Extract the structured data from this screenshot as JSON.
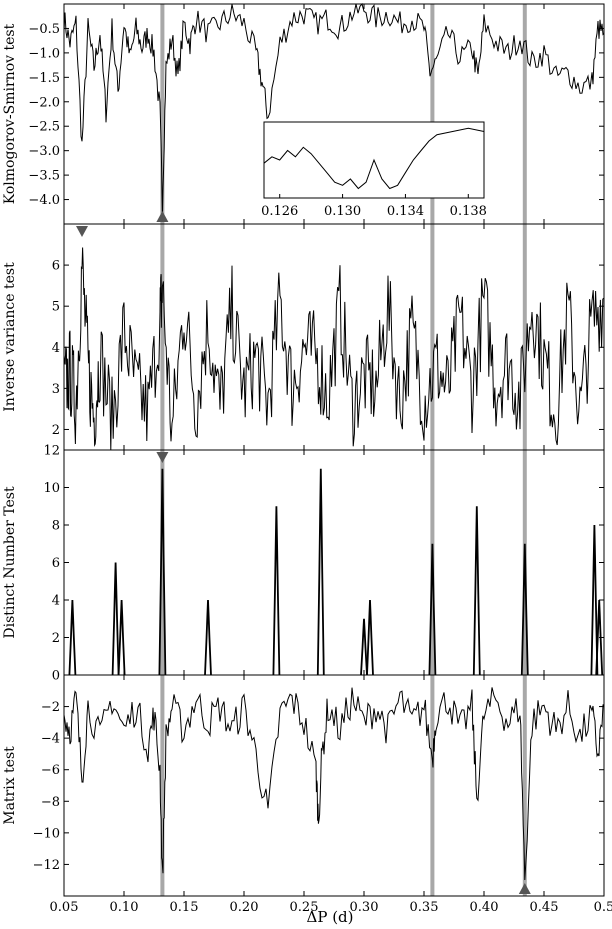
{
  "chart_data": {
    "type": "line",
    "x_axis": {
      "label": "ΔP (d)",
      "range": [
        0.05,
        0.5
      ],
      "ticks": [
        0.05,
        0.1,
        0.15,
        0.2,
        0.25,
        0.3,
        0.35,
        0.4,
        0.45,
        0.5
      ],
      "tick_labels": [
        "0.05",
        "0.10",
        "0.15",
        "0.20",
        "0.25",
        "0.30",
        "0.35",
        "0.40",
        "0.45",
        "0.5"
      ]
    },
    "highlight_periods": [
      0.132,
      0.357,
      0.434
    ],
    "panels": [
      {
        "id": "ks",
        "ylabel": "Kolmogorov-Smirnov test",
        "ylim": [
          -4.5,
          0.0
        ],
        "yticks": [
          -0.5,
          -1.0,
          -1.5,
          -2.0,
          -2.5,
          -3.0,
          -3.5,
          -4.0
        ],
        "ytick_labels": [
          "−0.5",
          "−1.0",
          "−1.5",
          "−2.0",
          "−2.5",
          "−3.0",
          "−3.5",
          "−4.0"
        ],
        "marker": {
          "x": 0.132,
          "direction": "up",
          "at": "bottom"
        },
        "series": {
          "x": [
            0.05,
            0.055,
            0.06,
            0.065,
            0.07,
            0.075,
            0.08,
            0.085,
            0.09,
            0.095,
            0.1,
            0.105,
            0.11,
            0.115,
            0.12,
            0.125,
            0.13,
            0.132,
            0.135,
            0.14,
            0.145,
            0.15,
            0.155,
            0.16,
            0.17,
            0.18,
            0.19,
            0.2,
            0.21,
            0.215,
            0.22,
            0.23,
            0.24,
            0.25,
            0.26,
            0.27,
            0.28,
            0.29,
            0.3,
            0.31,
            0.32,
            0.33,
            0.34,
            0.35,
            0.355,
            0.36,
            0.37,
            0.38,
            0.39,
            0.395,
            0.4,
            0.41,
            0.42,
            0.43,
            0.44,
            0.45,
            0.46,
            0.47,
            0.48,
            0.49,
            0.495,
            0.5
          ],
          "y": [
            -0.3,
            -0.8,
            -0.4,
            -2.9,
            -0.5,
            -1.3,
            -0.6,
            -2.2,
            -0.5,
            -1.8,
            -0.4,
            -1.1,
            -0.5,
            -0.9,
            -0.6,
            -1.0,
            -2.2,
            -4.1,
            -1.3,
            -0.7,
            -1.5,
            -0.4,
            -0.8,
            -0.3,
            -0.6,
            -0.4,
            -0.2,
            -0.4,
            -1.0,
            -1.6,
            -2.3,
            -0.8,
            -0.3,
            -0.2,
            -0.4,
            -0.3,
            -0.5,
            -0.2,
            -0.1,
            -0.3,
            -0.2,
            -0.4,
            -0.3,
            -0.5,
            -1.4,
            -1.2,
            -0.6,
            -1.1,
            -0.9,
            -1.5,
            -0.4,
            -0.8,
            -1.0,
            -0.7,
            -1.2,
            -1.0,
            -1.5,
            -1.4,
            -1.7,
            -1.6,
            -0.5,
            -0.6
          ]
        },
        "inset": {
          "x_ticks": [
            0.126,
            0.13,
            0.134,
            0.138
          ],
          "x_tick_labels": [
            "0.126",
            "0.130",
            "0.134",
            "0.138"
          ],
          "xlim": [
            0.125,
            0.139
          ],
          "series": {
            "x": [
              0.125,
              0.1255,
              0.126,
              0.1265,
              0.127,
              0.1275,
              0.128,
              0.129,
              0.1295,
              0.13,
              0.1305,
              0.131,
              0.1315,
              0.132,
              0.1325,
              0.133,
              0.1335,
              0.134,
              0.1345,
              0.135,
              0.1355,
              0.136,
              0.137,
              0.138,
              0.139
            ],
            "y": [
              -1.9,
              -1.7,
              -1.8,
              -1.5,
              -1.7,
              -1.4,
              -1.6,
              -2.2,
              -2.5,
              -2.6,
              -2.4,
              -2.7,
              -2.5,
              -1.8,
              -2.4,
              -2.7,
              -2.6,
              -2.2,
              -1.8,
              -1.5,
              -1.2,
              -1.0,
              -0.9,
              -0.8,
              -0.9
            ]
          }
        }
      },
      {
        "id": "iv",
        "ylabel": "Inverse variance test",
        "ylim": [
          1.5,
          7.0
        ],
        "yticks": [
          2,
          3,
          4,
          5,
          6
        ],
        "ytick_labels": [
          "2",
          "3",
          "4",
          "5",
          "6"
        ],
        "marker": {
          "x": 0.065,
          "direction": "down",
          "at": "top"
        },
        "series": {
          "x": [
            0.05,
            0.055,
            0.06,
            0.065,
            0.07,
            0.075,
            0.08,
            0.09,
            0.1,
            0.11,
            0.12,
            0.13,
            0.132,
            0.14,
            0.15,
            0.16,
            0.17,
            0.18,
            0.19,
            0.2,
            0.21,
            0.22,
            0.23,
            0.24,
            0.25,
            0.26,
            0.27,
            0.28,
            0.29,
            0.3,
            0.31,
            0.32,
            0.33,
            0.34,
            0.35,
            0.36,
            0.37,
            0.38,
            0.39,
            0.4,
            0.41,
            0.42,
            0.43,
            0.44,
            0.45,
            0.46,
            0.47,
            0.48,
            0.49,
            0.5
          ],
          "y": [
            3.0,
            3.4,
            2.6,
            6.0,
            3.5,
            2.3,
            3.8,
            2.2,
            4.4,
            3.0,
            2.4,
            4.7,
            5.4,
            1.9,
            5.0,
            2.6,
            4.6,
            2.5,
            4.9,
            2.9,
            3.8,
            2.6,
            5.1,
            3.0,
            4.0,
            3.8,
            2.8,
            5.0,
            2.6,
            3.3,
            3.0,
            5.0,
            2.6,
            4.4,
            2.7,
            3.6,
            2.9,
            4.7,
            3.0,
            5.1,
            3.0,
            3.7,
            2.7,
            5.1,
            3.7,
            2.4,
            4.9,
            2.4,
            4.6,
            5.2
          ]
        }
      },
      {
        "id": "dn",
        "ylabel": "Distinct Number Test",
        "ylim": [
          0,
          12
        ],
        "yticks": [
          0,
          2,
          4,
          6,
          8,
          10,
          12
        ],
        "ytick_labels": [
          "0",
          "2",
          "4",
          "6",
          "8",
          "10",
          "12"
        ],
        "marker": {
          "x": 0.132,
          "direction": "down",
          "at": "top"
        },
        "peaks": [
          {
            "x": 0.057,
            "y": 4
          },
          {
            "x": 0.093,
            "y": 6
          },
          {
            "x": 0.098,
            "y": 4
          },
          {
            "x": 0.132,
            "y": 11
          },
          {
            "x": 0.17,
            "y": 4
          },
          {
            "x": 0.227,
            "y": 9
          },
          {
            "x": 0.264,
            "y": 11
          },
          {
            "x": 0.3,
            "y": 3
          },
          {
            "x": 0.305,
            "y": 4
          },
          {
            "x": 0.357,
            "y": 7
          },
          {
            "x": 0.394,
            "y": 9
          },
          {
            "x": 0.434,
            "y": 7
          },
          {
            "x": 0.492,
            "y": 8
          },
          {
            "x": 0.496,
            "y": 4
          }
        ]
      },
      {
        "id": "mx",
        "ylabel": "Matrix test",
        "ylim": [
          -14.0,
          0.0
        ],
        "yticks": [
          -2,
          -4,
          -6,
          -8,
          -10,
          -12
        ],
        "ytick_labels": [
          "−2",
          "−4",
          "−6",
          "−8",
          "−10",
          "−12"
        ],
        "marker": {
          "x": 0.434,
          "direction": "up",
          "at": "bottom"
        },
        "series": {
          "x": [
            0.05,
            0.055,
            0.06,
            0.065,
            0.07,
            0.08,
            0.09,
            0.1,
            0.11,
            0.12,
            0.125,
            0.13,
            0.132,
            0.135,
            0.14,
            0.15,
            0.16,
            0.17,
            0.18,
            0.19,
            0.2,
            0.21,
            0.22,
            0.23,
            0.24,
            0.25,
            0.26,
            0.262,
            0.265,
            0.27,
            0.28,
            0.29,
            0.3,
            0.31,
            0.32,
            0.33,
            0.34,
            0.35,
            0.357,
            0.36,
            0.37,
            0.38,
            0.39,
            0.394,
            0.4,
            0.41,
            0.42,
            0.43,
            0.434,
            0.44,
            0.45,
            0.46,
            0.47,
            0.48,
            0.49,
            0.495,
            0.5
          ],
          "y": [
            -2.5,
            -3.5,
            -1.5,
            -6.5,
            -2.0,
            -4.0,
            -1.5,
            -3.5,
            -2.0,
            -4.5,
            -2.5,
            -6.0,
            -13.0,
            -4.0,
            -2.0,
            -3.5,
            -1.5,
            -3.0,
            -2.0,
            -3.5,
            -2.0,
            -5.0,
            -8.8,
            -2.5,
            -1.5,
            -3.0,
            -6.0,
            -9.2,
            -5.0,
            -2.0,
            -3.5,
            -1.5,
            -3.0,
            -2.0,
            -3.5,
            -1.5,
            -3.0,
            -2.0,
            -5.3,
            -2.5,
            -1.5,
            -3.5,
            -2.0,
            -7.8,
            -2.5,
            -1.5,
            -3.0,
            -2.0,
            -13.0,
            -3.0,
            -2.0,
            -3.5,
            -2.0,
            -4.0,
            -2.5,
            -5.0,
            -2.0
          ]
        }
      }
    ]
  },
  "colors": {
    "line": "#000000",
    "highlight": "#a8a8a8",
    "marker": "#555555"
  }
}
